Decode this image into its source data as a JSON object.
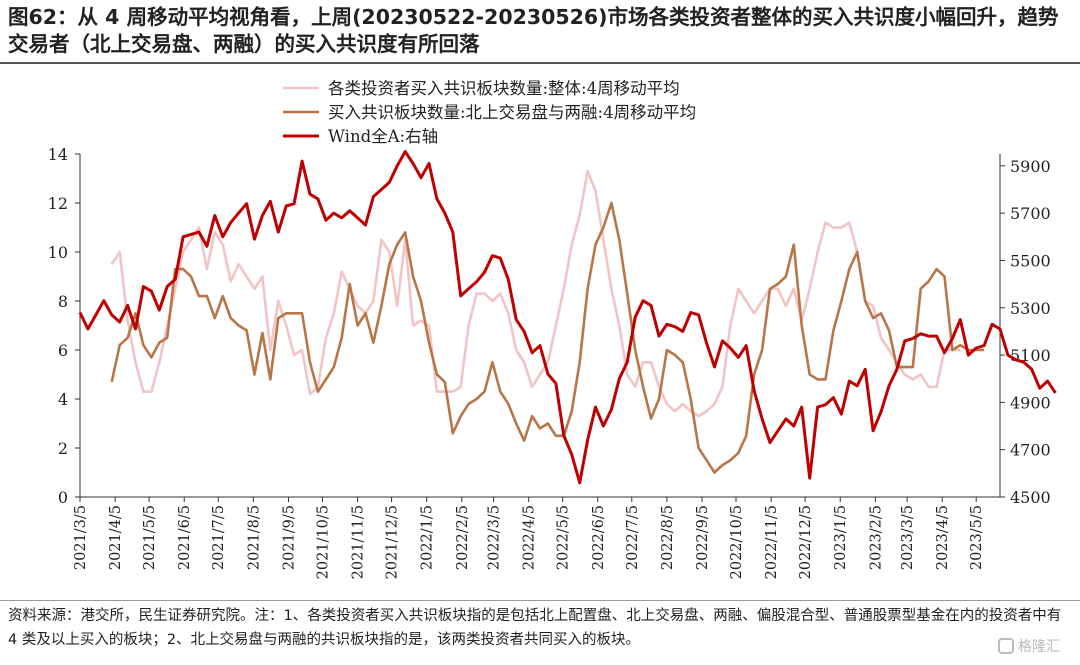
{
  "header": {
    "title": "图62：从 4 周移动平均视角看，上周(20230522-20230526)市场各类投资者整体的买入共识度小幅回升，趋势交易者（北上交易盘、两融）的买入共识度有所回落"
  },
  "footnote": {
    "text": "资料来源：港交所，民生证券研究院。注：1、各类投资者买入共识板块指的是包括北上配置盘、北上交易盘、两融、偏股混合型、普通股票型基金在内的投资者中有 4 类及以上买入的板块；2、北上交易盘与两融的共识板块指的是，该两类投资者共同买入的板块。"
  },
  "watermark": {
    "text": "格隆汇",
    "icon": "logo-icon"
  },
  "chart_data": {
    "type": "line",
    "x_tick_labels": [
      "2021/3/5",
      "2021/4/5",
      "2021/5/5",
      "2021/6/5",
      "2021/7/5",
      "2021/8/5",
      "2021/9/5",
      "2021/10/5",
      "2021/11/5",
      "2021/12/5",
      "2022/1/5",
      "2022/2/5",
      "2022/3/5",
      "2022/4/5",
      "2022/5/5",
      "2022/6/5",
      "2022/7/5",
      "2022/8/5",
      "2022/9/5",
      "2022/10/5",
      "2022/11/5",
      "2022/12/5",
      "2023/1/5",
      "2023/2/5",
      "2023/3/5",
      "2023/4/5",
      "2023/5/5"
    ],
    "x_range": [
      "2021/3/5",
      "2023/5/26"
    ],
    "y_left": {
      "ticks": [
        "0",
        "2",
        "4",
        "6",
        "8",
        "10",
        "12",
        "14"
      ],
      "range": [
        0,
        14
      ]
    },
    "y_right": {
      "ticks": [
        "4500",
        "4700",
        "4900",
        "5100",
        "5300",
        "5500",
        "5700",
        "5900"
      ],
      "range": [
        4500,
        5950
      ]
    },
    "grid": false,
    "legend_position": "top-center",
    "series": [
      {
        "name": "各类投资者买入共识板块数量:整体:4周移动平均",
        "axis": "left",
        "color": "#f2c4c6",
        "start": "2021/4/2",
        "values": [
          9.5,
          10,
          7.2,
          5.5,
          4.3,
          4.3,
          5.5,
          7,
          8.5,
          10,
          10.5,
          11,
          9.3,
          10.8,
          10.3,
          8.8,
          9.5,
          9,
          8.5,
          9,
          6,
          8,
          7,
          5.8,
          6,
          4.2,
          4.5,
          6.5,
          7.5,
          9.2,
          8.5,
          7.8,
          7.5,
          8,
          10.5,
          10,
          7.8,
          10.5,
          7,
          7.2,
          7,
          4.3,
          4.3,
          4.3,
          4.5,
          7,
          8.3,
          8.3,
          8,
          8.3,
          7.5,
          6,
          5.5,
          4.5,
          5,
          5.5,
          7,
          8.5,
          10.3,
          11.5,
          13.3,
          12.5,
          10.5,
          8.5,
          7,
          5,
          4.5,
          5.5,
          5.5,
          4.5,
          3.8,
          3.5,
          3.8,
          3.5,
          3.3,
          3.5,
          3.8,
          4.5,
          7,
          8.5,
          8,
          7.5,
          8,
          8.5,
          8.5,
          7.8,
          8.5,
          7.2,
          8.5,
          10,
          11.2,
          11,
          11,
          11.2,
          10,
          8,
          7.8,
          6.5,
          6,
          5.5,
          5,
          4.8,
          5,
          4.5,
          4.5,
          6,
          6,
          6
        ]
      },
      {
        "name": "买入共识板块数量:北上交易盘与两融:4周移动平均",
        "axis": "left",
        "color": "#b87648",
        "start": "2021/4/2",
        "values": [
          4.7,
          6.2,
          6.5,
          7.5,
          6.2,
          5.7,
          6.3,
          6.5,
          9.3,
          9.3,
          9,
          8.2,
          8.2,
          7.3,
          8.2,
          7.3,
          7,
          6.8,
          5,
          6.7,
          4.8,
          7.3,
          7.5,
          7.5,
          7.5,
          5.5,
          4.3,
          4.8,
          5.3,
          6.5,
          8.7,
          7,
          7.5,
          6.3,
          7.8,
          9.5,
          10.3,
          10.8,
          9,
          8,
          6.3,
          5,
          4.7,
          2.6,
          3.3,
          3.8,
          4,
          4.3,
          5.5,
          4.3,
          3.8,
          3,
          2.3,
          3.3,
          2.8,
          3,
          2.5,
          2.5,
          3.5,
          5.5,
          8.5,
          10.3,
          11,
          12,
          10.5,
          8.3,
          6,
          4.5,
          3.2,
          4,
          6,
          5.8,
          5.5,
          4,
          2,
          1.5,
          1,
          1.3,
          1.5,
          1.8,
          2.5,
          5,
          6,
          8.5,
          8.7,
          9,
          10.3,
          7,
          5,
          4.8,
          4.8,
          6.8,
          8,
          9.3,
          10,
          8,
          7.3,
          7.5,
          6.8,
          5.3,
          5.3,
          5.3,
          8.5,
          8.8,
          9.3,
          9,
          6,
          6.2,
          6,
          6,
          6
        ]
      },
      {
        "name": "Wind全A:右轴",
        "axis": "right",
        "color": "#c00000",
        "start": "2021/3/5",
        "values": [
          5280,
          5210,
          5270,
          5330,
          5270,
          5240,
          5310,
          5210,
          5390,
          5370,
          5290,
          5390,
          5420,
          5600,
          5610,
          5620,
          5560,
          5690,
          5600,
          5660,
          5700,
          5740,
          5590,
          5690,
          5750,
          5620,
          5730,
          5740,
          5920,
          5780,
          5760,
          5670,
          5700,
          5680,
          5710,
          5680,
          5650,
          5770,
          5800,
          5830,
          5900,
          5960,
          5910,
          5850,
          5910,
          5760,
          5700,
          5620,
          5350,
          5380,
          5410,
          5450,
          5520,
          5510,
          5420,
          5250,
          5200,
          5110,
          5140,
          5020,
          4980,
          4760,
          4680,
          4560,
          4740,
          4880,
          4800,
          4870,
          5000,
          5070,
          5260,
          5330,
          5310,
          5180,
          5230,
          5220,
          5200,
          5280,
          5270,
          5150,
          5050,
          5160,
          5130,
          5090,
          5140,
          4950,
          4830,
          4730,
          4780,
          4830,
          4800,
          4880,
          4580,
          4880,
          4890,
          4920,
          4850,
          4990,
          4970,
          5040,
          4780,
          4860,
          4970,
          5040,
          5160,
          5170,
          5190,
          5180,
          5180,
          5110,
          5170,
          5250,
          5100,
          5130,
          5140,
          5230,
          5210,
          5100,
          5080,
          5070,
          5040,
          4960,
          4990,
          4940
        ]
      }
    ]
  }
}
